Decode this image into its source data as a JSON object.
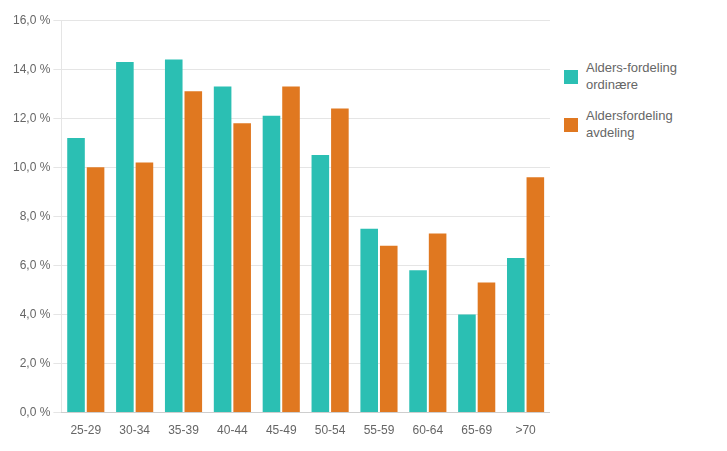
{
  "chart_data": {
    "type": "bar",
    "categories": [
      "25-29",
      "30-34",
      "35-39",
      "40-44",
      "45-49",
      "50-54",
      "55-59",
      "60-64",
      "65-69",
      ">70"
    ],
    "series": [
      {
        "name": "Alders-fordeling\nordinære",
        "color": "#2BBFB3",
        "values": [
          0.112,
          0.143,
          0.144,
          0.133,
          0.121,
          0.105,
          0.075,
          0.058,
          0.04,
          0.063
        ]
      },
      {
        "name": "Aldersfordeling avdeling",
        "color": "#E07820",
        "values": [
          0.1,
          0.102,
          0.131,
          0.118,
          0.133,
          0.124,
          0.068,
          0.073,
          0.053,
          0.096
        ]
      }
    ],
    "ylim": [
      0.0,
      0.16
    ],
    "yticks": [
      {
        "value": 0.0,
        "label": "0,0 %"
      },
      {
        "value": 0.02,
        "label": "2,0 %"
      },
      {
        "value": 0.04,
        "label": "4,0 %"
      },
      {
        "value": 0.06,
        "label": "6,0 %"
      },
      {
        "value": 0.08,
        "label": "8,0 %"
      },
      {
        "value": 0.1,
        "label": "10,0 %"
      },
      {
        "value": 0.12,
        "label": "12,0 %"
      },
      {
        "value": 0.14,
        "label": "14,0 %"
      },
      {
        "value": 0.16,
        "label": "16,0 %"
      }
    ],
    "grid": true,
    "legend": "upper right"
  }
}
